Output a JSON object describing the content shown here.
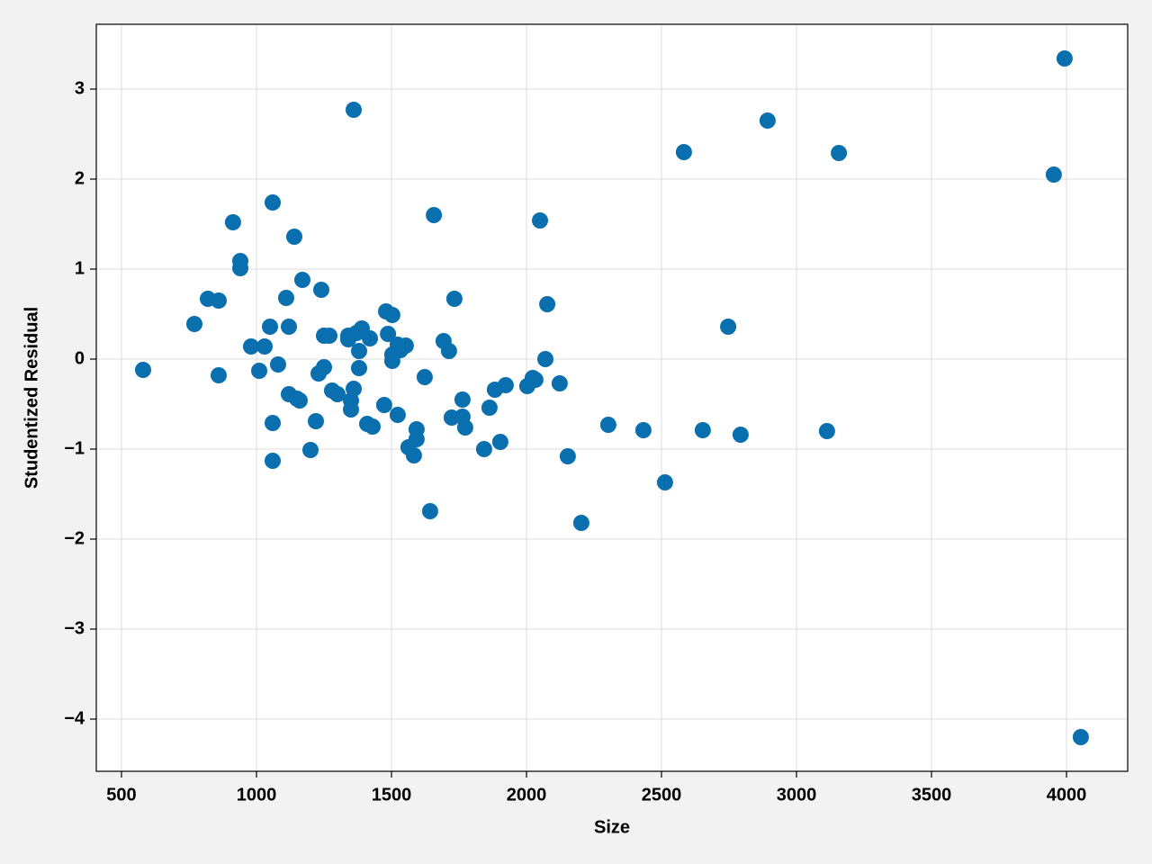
{
  "chart_data": {
    "type": "scatter",
    "xlabel": "Size",
    "ylabel": "Studentized Residual",
    "color": "#0a6fae",
    "grid": true,
    "xlim": [
      406.7,
      4226.7
    ],
    "ylim": [
      -4.58,
      3.72
    ],
    "xticks": [
      500,
      1000,
      1500,
      2000,
      2500,
      3000,
      3500,
      4000
    ],
    "yticks": [
      {
        "value": -4,
        "label": "−4"
      },
      {
        "value": -3,
        "label": "−3"
      },
      {
        "value": -2,
        "label": "−2"
      },
      {
        "value": -1,
        "label": "−1"
      },
      0,
      1,
      2,
      3
    ],
    "x": [
      580,
      770,
      820,
      860,
      860,
      913,
      940,
      940,
      980,
      1010,
      1030,
      1050,
      1060,
      1060,
      1060,
      1080,
      1110,
      1120,
      1120,
      1140,
      1150,
      1160,
      1170,
      1200,
      1220,
      1230,
      1240,
      1250,
      1250,
      1270,
      1280,
      1300,
      1340,
      1340,
      1350,
      1350,
      1360,
      1360,
      1370,
      1380,
      1380,
      1390,
      1410,
      1420,
      1430,
      1473,
      1480,
      1487,
      1503,
      1503,
      1503,
      1523,
      1523,
      1533,
      1553,
      1563,
      1583,
      1593,
      1593,
      1623,
      1643,
      1657,
      1693,
      1713,
      1723,
      1733,
      1763,
      1763,
      1773,
      1843,
      1863,
      1883,
      1903,
      1923,
      2003,
      2023,
      2033,
      2050,
      2070,
      2077,
      2123,
      2153,
      2203,
      2303,
      2433,
      2513,
      2583,
      2653,
      2747,
      2793,
      2893,
      3113,
      3157,
      3953,
      3993,
      4053
    ],
    "values": [
      -0.12,
      0.39,
      0.67,
      0.65,
      -0.18,
      1.52,
      1.09,
      1.01,
      0.14,
      -0.13,
      0.14,
      0.36,
      1.74,
      -0.71,
      -1.13,
      -0.06,
      0.68,
      0.36,
      -0.39,
      1.36,
      -0.44,
      -0.46,
      0.88,
      -1.01,
      -0.69,
      -0.16,
      0.77,
      -0.09,
      0.26,
      0.26,
      -0.35,
      -0.39,
      0.26,
      0.22,
      -0.46,
      -0.56,
      2.77,
      -0.33,
      0.29,
      0.09,
      -0.1,
      0.34,
      -0.72,
      0.23,
      -0.75,
      -0.51,
      0.53,
      0.28,
      0.49,
      0.05,
      -0.02,
      0.16,
      -0.62,
      0.1,
      0.15,
      -0.98,
      -1.07,
      -0.78,
      -0.89,
      -0.2,
      -1.69,
      1.6,
      0.2,
      0.09,
      -0.65,
      0.67,
      -0.45,
      -0.64,
      -0.76,
      -1.0,
      -0.54,
      -0.34,
      -0.92,
      -0.29,
      -0.3,
      -0.21,
      -0.23,
      1.54,
      0.0,
      0.61,
      -0.27,
      -1.08,
      -1.82,
      -0.73,
      -0.79,
      -1.37,
      2.3,
      -0.79,
      0.36,
      -0.84,
      2.65,
      -0.8,
      2.29,
      2.05,
      3.34,
      -4.2
    ]
  }
}
